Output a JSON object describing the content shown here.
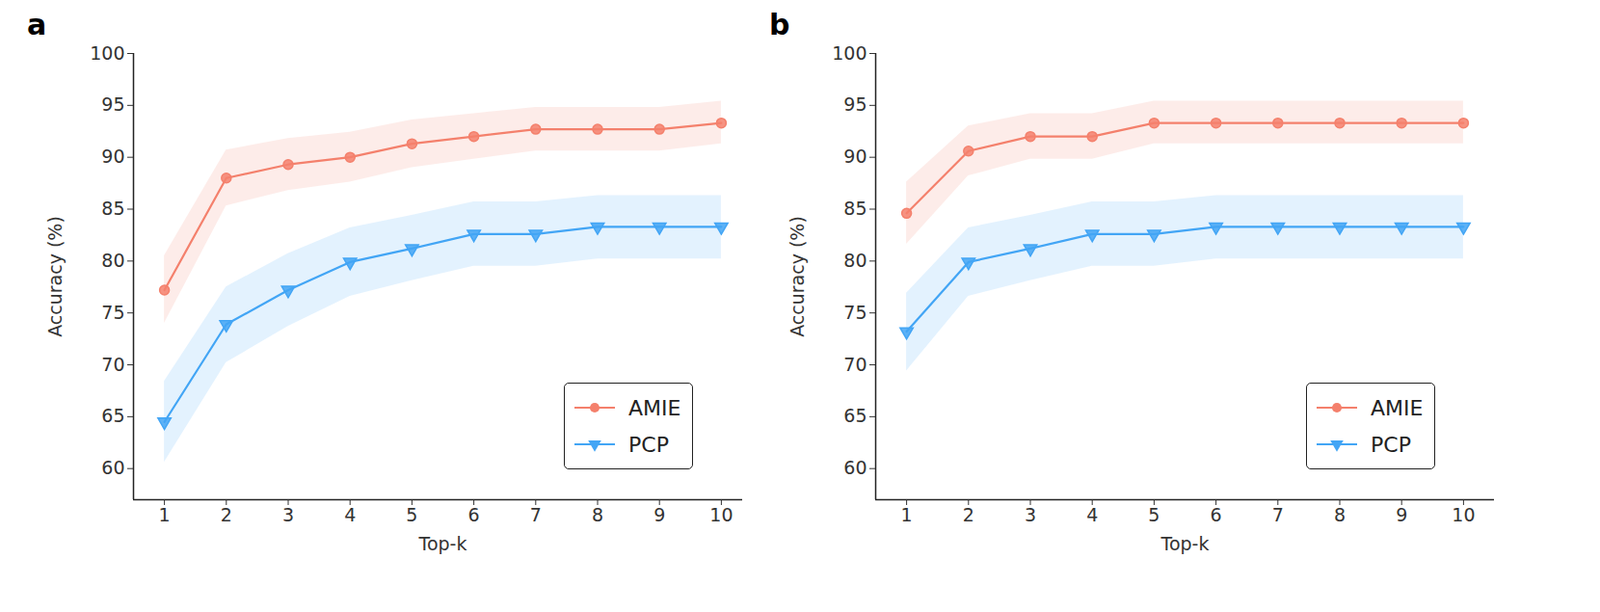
{
  "chart_data": [
    {
      "type": "line",
      "title": "a",
      "x_label": "Top-k",
      "y_label": "Accuracy (%)",
      "x": [
        1,
        2,
        3,
        4,
        5,
        6,
        7,
        8,
        9,
        10
      ],
      "xlim": [
        0.5,
        10.5
      ],
      "xticks": [
        1,
        2,
        3,
        4,
        5,
        6,
        7,
        8,
        9,
        10
      ],
      "ylim": [
        57,
        100
      ],
      "yticks": [
        60,
        65,
        70,
        75,
        80,
        85,
        90,
        95,
        100
      ],
      "grid": false,
      "legend": "lower right",
      "series": [
        {
          "name": "AMIE",
          "color": "#f4806c",
          "marker": "circle",
          "values": [
            77.2,
            88.0,
            89.3,
            90.0,
            91.3,
            92.0,
            92.7,
            92.7,
            92.7,
            93.3
          ],
          "lower": [
            74.0,
            85.3,
            86.8,
            87.6,
            89.0,
            89.8,
            90.6,
            90.6,
            90.6,
            91.3
          ],
          "upper": [
            80.5,
            90.7,
            91.8,
            92.4,
            93.6,
            94.2,
            94.8,
            94.8,
            94.8,
            95.4
          ]
        },
        {
          "name": "PCP",
          "color": "#42a5f5",
          "marker": "triangle_down",
          "values": [
            64.5,
            73.9,
            77.2,
            79.9,
            81.2,
            82.6,
            82.6,
            83.3,
            83.3,
            83.3
          ],
          "lower": [
            60.6,
            70.2,
            73.7,
            76.6,
            78.1,
            79.5,
            79.5,
            80.2,
            80.2,
            80.2
          ],
          "upper": [
            68.4,
            77.5,
            80.7,
            83.2,
            84.4,
            85.7,
            85.7,
            86.3,
            86.3,
            86.3
          ]
        }
      ]
    },
    {
      "type": "line",
      "title": "b",
      "x_label": "Top-k",
      "y_label": "Accuracy (%)",
      "x": [
        1,
        2,
        3,
        4,
        5,
        6,
        7,
        8,
        9,
        10
      ],
      "xlim": [
        0.5,
        10.5
      ],
      "xticks": [
        1,
        2,
        3,
        4,
        5,
        6,
        7,
        8,
        9,
        10
      ],
      "ylim": [
        57,
        100
      ],
      "yticks": [
        60,
        65,
        70,
        75,
        80,
        85,
        90,
        95,
        100
      ],
      "grid": false,
      "legend": "lower right",
      "series": [
        {
          "name": "AMIE",
          "color": "#f4806c",
          "marker": "circle",
          "values": [
            84.6,
            90.6,
            92.0,
            92.0,
            93.3,
            93.3,
            93.3,
            93.3,
            93.3,
            93.3
          ],
          "lower": [
            81.6,
            88.2,
            89.8,
            89.8,
            91.3,
            91.3,
            91.3,
            91.3,
            91.3,
            91.3
          ],
          "upper": [
            87.6,
            93.0,
            94.2,
            94.2,
            95.4,
            95.4,
            95.4,
            95.4,
            95.4,
            95.4
          ]
        },
        {
          "name": "PCP",
          "color": "#42a5f5",
          "marker": "triangle_down",
          "values": [
            73.2,
            79.9,
            81.2,
            82.6,
            82.6,
            83.3,
            83.3,
            83.3,
            83.3,
            83.3
          ],
          "lower": [
            69.4,
            76.6,
            78.1,
            79.5,
            79.5,
            80.2,
            80.2,
            80.2,
            80.2,
            80.2
          ],
          "upper": [
            76.9,
            83.2,
            84.4,
            85.7,
            85.7,
            86.3,
            86.3,
            86.3,
            86.3,
            86.3
          ]
        }
      ]
    }
  ]
}
